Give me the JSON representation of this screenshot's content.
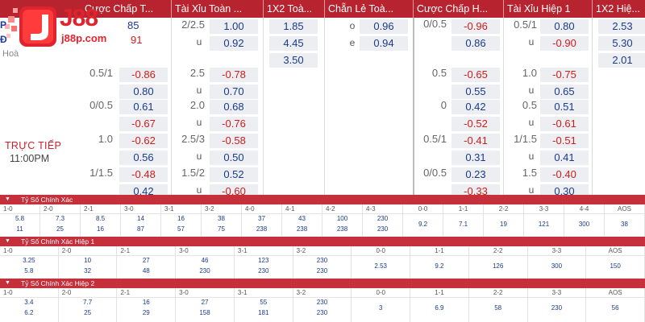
{
  "header": {
    "cols": [
      "Cược Chấp T...",
      "Tài Xỉu Toàn ...",
      "1X2 Toà...",
      "Chẵn Lẻ Toà...",
      "Cược Chấp H...",
      "Tài Xỉu Hiệp 1",
      "1X2 Hiệ..."
    ]
  },
  "logo": {
    "brand": "J88",
    "domain": "j88p.com",
    "frag1": "P",
    "frag2": "Đ",
    "frag_odds1": "85",
    "frag_odds2": "91"
  },
  "odds": {
    "draw_label": "Hoà",
    "live_label": "TRỰC TIẾP",
    "time": "11:00PM",
    "left_rows": [
      {
        "hcap": "",
        "h1": "",
        "h2": "",
        "ou": "2/2.5",
        "o1": "1.00",
        "o2": "0.92",
        "o_lbl": "u",
        "x1": "1.85",
        "x2": "4.45",
        "x3": "3.50",
        "oe1": "0.96",
        "oe2": "0.94",
        "oe_lbl1": "o",
        "oe_lbl2": "e"
      },
      {
        "hcap": "0.5/1",
        "h1": "-0.86",
        "h2": "0.80",
        "ou": "2.5",
        "o1": "-0.78",
        "o2": "0.70",
        "o_lbl": "u"
      },
      {
        "hcap": "0/0.5",
        "h1": "0.61",
        "h2": "-0.67",
        "ou": "2.0",
        "o1": "0.68",
        "o2": "-0.76",
        "o_lbl": "u"
      },
      {
        "hcap": "1.0",
        "h1": "-0.62",
        "h2": "0.56",
        "ou": "2.5/3",
        "o1": "-0.58",
        "o2": "0.50",
        "o_lbl": "u"
      },
      {
        "hcap": "1/1.5",
        "h1": "-0.48",
        "h2": "0.42",
        "ou": "1.5/2",
        "o1": "0.52",
        "o2": "-0.60",
        "o_lbl": "u"
      }
    ],
    "right_rows": [
      {
        "hcap": "0/0.5",
        "h1": "-0.96",
        "h2": "0.86",
        "ou": "0.5/1",
        "o1": "0.80",
        "o2": "-0.90",
        "o_lbl": "u",
        "x1": "2.53",
        "x2": "5.30",
        "x3": "2.01"
      },
      {
        "hcap": "0.5",
        "h1": "-0.65",
        "h2": "0.55",
        "ou": "1.0",
        "o1": "-0.75",
        "o2": "0.65",
        "o_lbl": "u"
      },
      {
        "hcap": "0",
        "h1": "0.42",
        "h2": "-0.52",
        "ou": "0.5",
        "o1": "0.51",
        "o2": "-0.61",
        "o_lbl": "u"
      },
      {
        "hcap": "0.5/1",
        "h1": "-0.41",
        "h2": "0.31",
        "ou": "1/1.5",
        "o1": "-0.51",
        "o2": "0.41",
        "o_lbl": "u"
      },
      {
        "hcap": "0/0.5",
        "h1": "0.23",
        "h2": "-0.33",
        "ou": "1.5",
        "o1": "-0.40",
        "o2": "0.30",
        "o_lbl": "u"
      }
    ]
  },
  "cs_full": {
    "title": "Tỷ Số Chính Xác",
    "labels": [
      "1-0",
      "2-0",
      "2-1",
      "3-0",
      "3-1",
      "3-2",
      "4-0",
      "4-1",
      "4-2",
      "4-3",
      "0-0",
      "1-1",
      "2-2",
      "3-3",
      "4-4",
      "AOS"
    ],
    "row1": [
      "5.8",
      "7.3",
      "8.5",
      "14",
      "16",
      "38",
      "37",
      "43",
      "100",
      "230",
      "9.2",
      "7.1",
      "19",
      "121",
      "300",
      "38"
    ],
    "row2": [
      "11",
      "25",
      "16",
      "87",
      "57",
      "75",
      "238",
      "238",
      "238",
      "230",
      "",
      "",
      "",
      "",
      "",
      ""
    ]
  },
  "cs_h1": {
    "title": "Tỷ Số Chính Xác Hiệp 1",
    "labels": [
      "1-0",
      "2-0",
      "2-1",
      "3-0",
      "3-1",
      "3-2",
      "0-0",
      "1-1",
      "2-2",
      "3-3",
      "AOS"
    ],
    "row1": [
      "3.25",
      "10",
      "27",
      "46",
      "123",
      "230",
      "2.53",
      "9.2",
      "126",
      "300",
      "150"
    ],
    "row2": [
      "5.8",
      "32",
      "48",
      "230",
      "230",
      "230",
      "",
      "",
      "",
      "",
      ""
    ]
  },
  "cs_h2": {
    "title": "Tỷ Số Chính Xác Hiệp 2",
    "labels": [
      "1-0",
      "2-0",
      "2-1",
      "3-0",
      "3-1",
      "3-2",
      "0-0",
      "1-1",
      "2-2",
      "3-3",
      "AOS"
    ],
    "row1": [
      "3.4",
      "7.7",
      "16",
      "27",
      "55",
      "230",
      "3",
      "6.9",
      "58",
      "230",
      "56"
    ],
    "row2": [
      "6.2",
      "25",
      "29",
      "158",
      "181",
      "230",
      "",
      "",
      "",
      "",
      ""
    ]
  },
  "colors": {
    "header": "#b7232f",
    "section": "#c5303b",
    "positive": "#1a3a8a",
    "negative": "#d11b1b",
    "cell_bg": "#eceef1"
  }
}
